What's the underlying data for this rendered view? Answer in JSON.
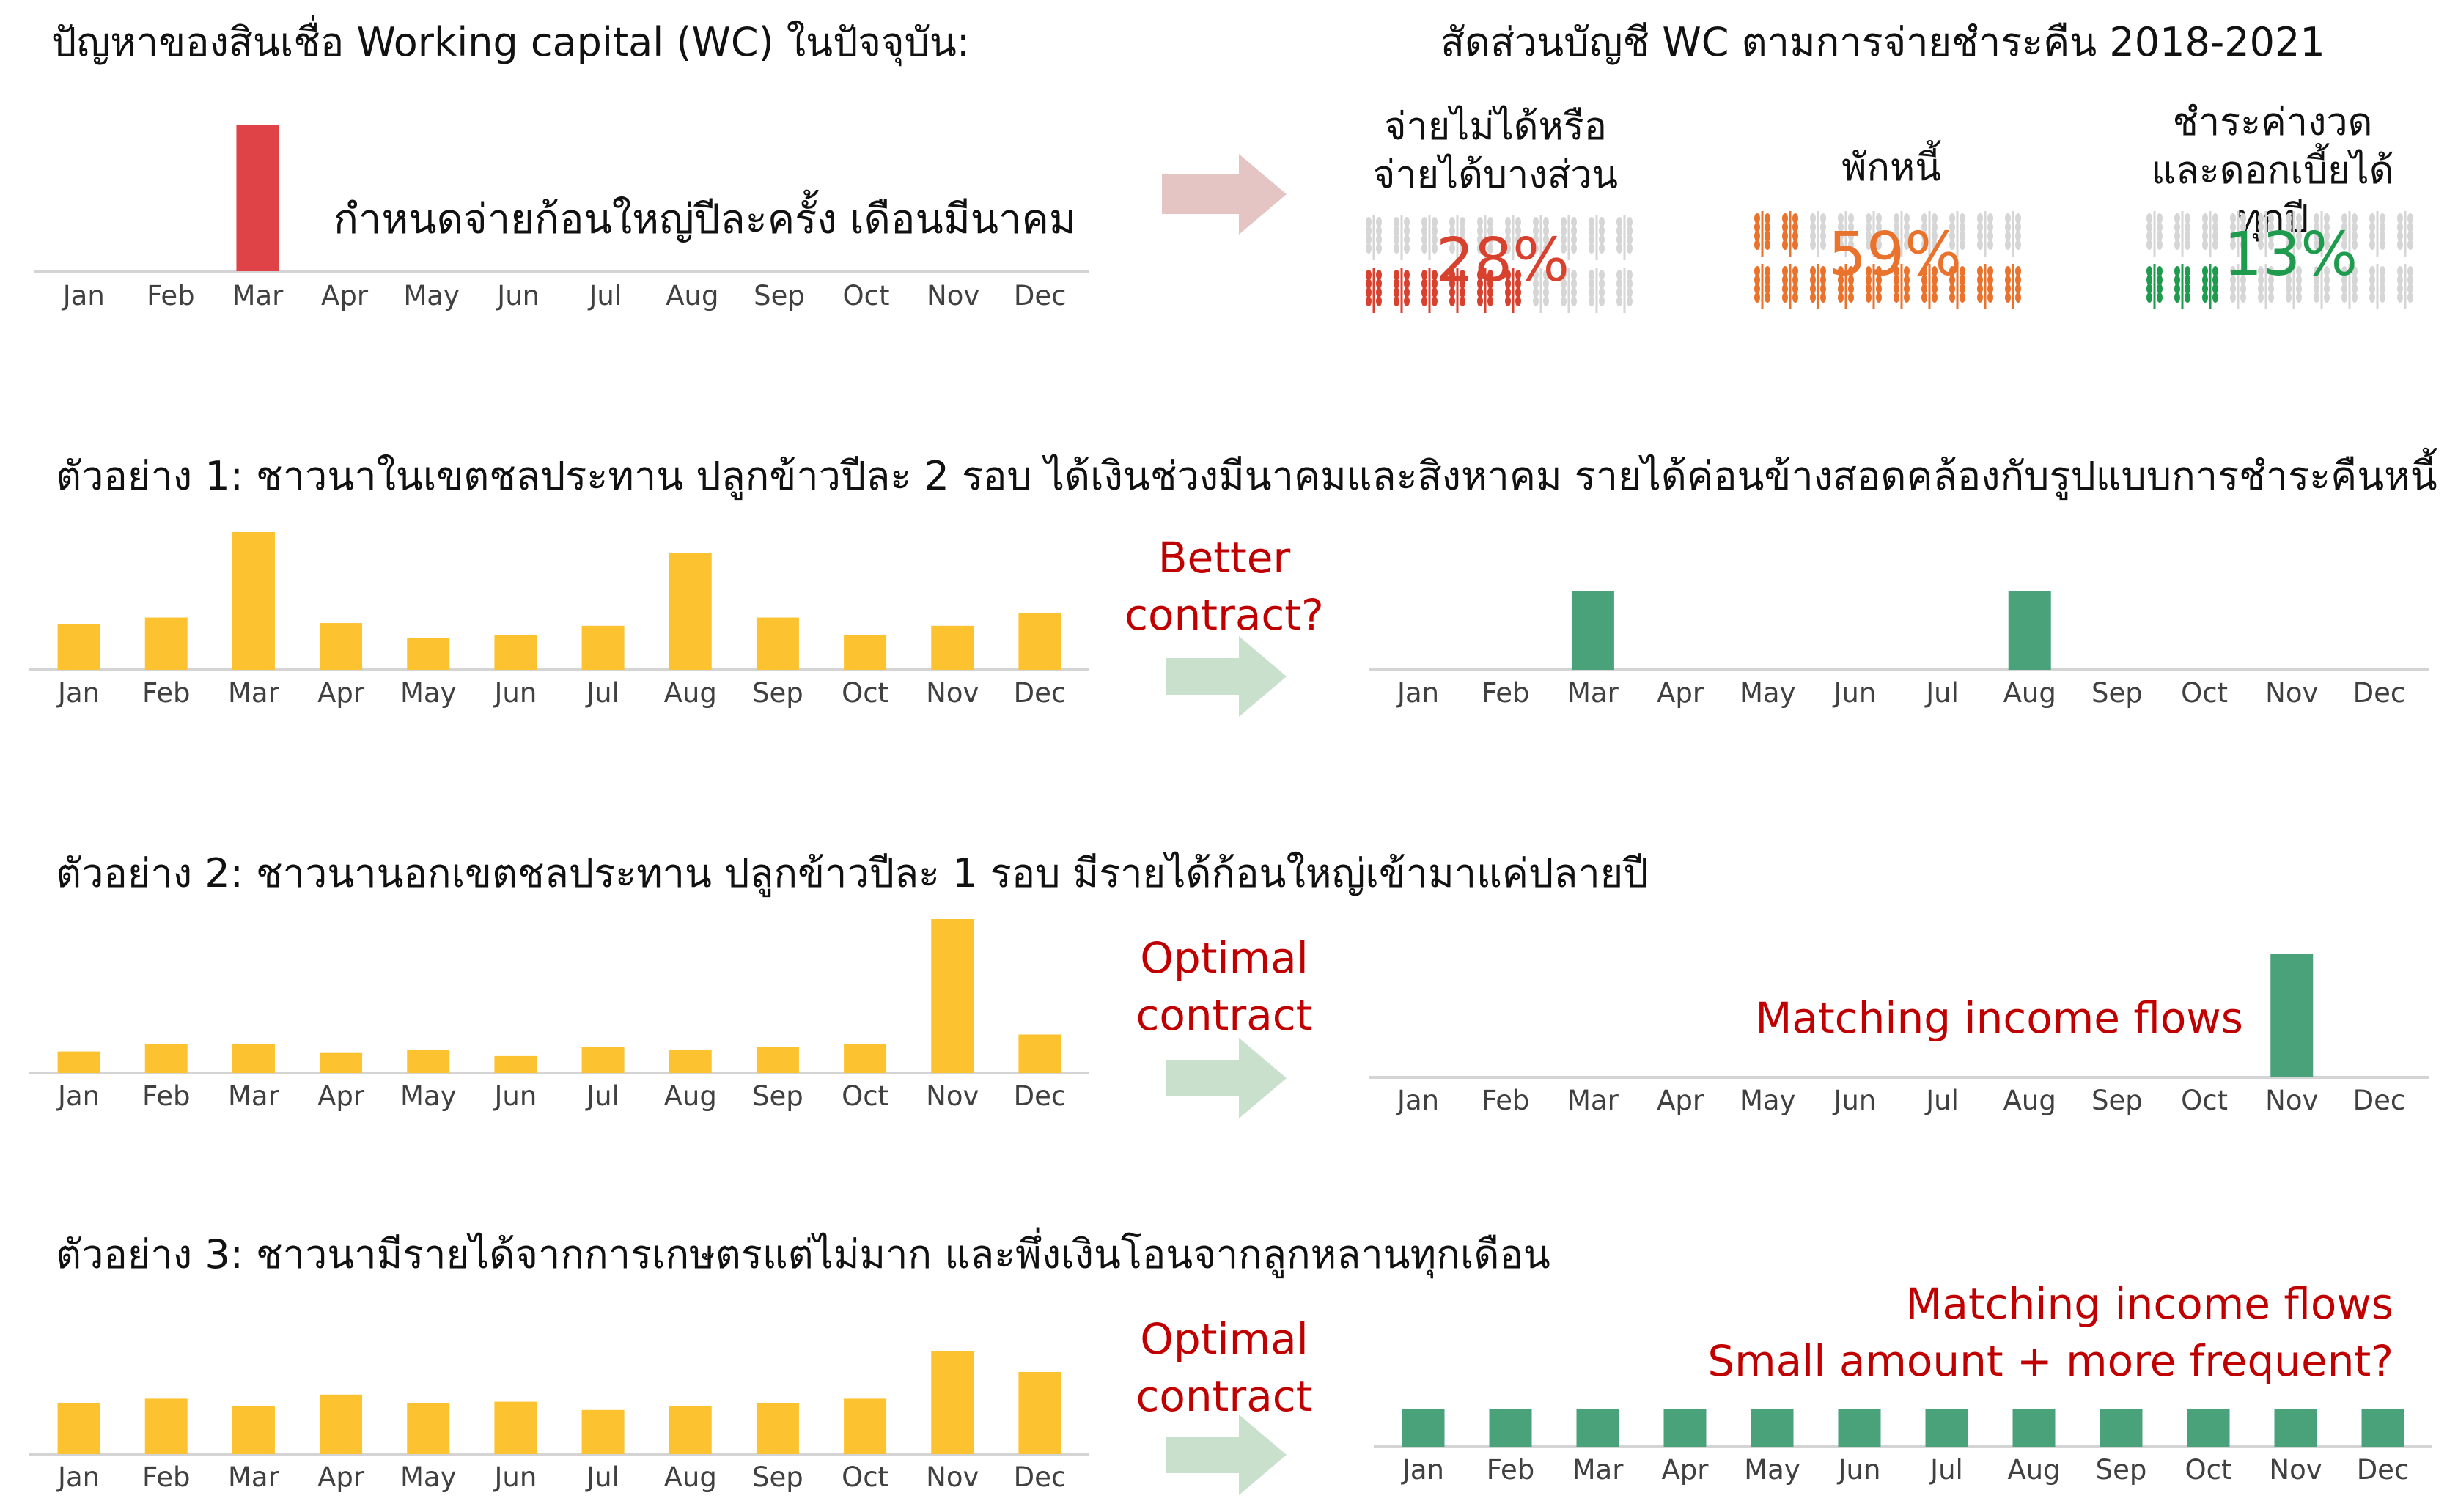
{
  "colors": {
    "red": "#e04347",
    "yellow": "#fdc22f",
    "green": "#4aa27b",
    "axis": "#d4d4d4",
    "tick_text": "#404040",
    "accent_text": "#c00000",
    "arrow_pink": "#e5c4c4",
    "arrow_green": "#c9e0cd",
    "wheat_gray": "#d6d6d6",
    "pct_red": "#d9412f",
    "pct_orange": "#e9732c",
    "pct_green": "#1f9b4e"
  },
  "problem": {
    "title": "ปัญหาของสินเชื่อ Working capital (WC) ในปัจจุบัน:",
    "annotation": "กำหนดจ่ายก้อนใหญ่ปีละครั้ง เดือนมีนาคม"
  },
  "share": {
    "title": "สัดส่วนบัญชี WC ตามการจ่ายชำระคืน 2018-2021",
    "items": [
      {
        "label": "จ่ายไม่ได้หรือจ่ายได้บางส่วน",
        "value": "28%",
        "color": "#d9412f",
        "fill": 0.28,
        "icon": "wheat-icon"
      },
      {
        "label": "พักหนี้",
        "value": "59%",
        "color": "#e9732c",
        "fill": 0.59,
        "icon": "wheat-icon"
      },
      {
        "label": "ชำระค่างวดและดอกเบี้ยได้ทุกปี",
        "value": "13%",
        "color": "#1f9b4e",
        "fill": 0.13,
        "icon": "wheat-icon"
      }
    ]
  },
  "examples": [
    {
      "title": "ตัวอย่าง 1: ชาวนาในเขตชลประทาน ปลูกข้าวปีละ 2 รอบ ได้เงินช่วงมีนาคมและสิงหาคม รายได้ค่อนข้างสอดคล้องกับรูปแบบการชำระคืนหนี้",
      "arrow_label": "Better contract?"
    },
    {
      "title": "ตัวอย่าง 2: ชาวนานอกเขตชลประทาน ปลูกข้าวปีละ 1 รอบ มีรายได้ก้อนใหญ่เข้ามาแค่ปลายปี",
      "arrow_label": "Optimal contract",
      "note": "Matching income flows"
    },
    {
      "title": "ตัวอย่าง 3: ชาวนามีรายได้จากการเกษตรแต่ไม่มาก และพึ่งเงินโอนจากลูกหลานทุกเดือน",
      "arrow_label": "Optimal contract",
      "note_lines": [
        "Matching income flows",
        "Small amount + more frequent?"
      ]
    }
  ],
  "chart_data": [
    {
      "type": "bar",
      "name": "current_wc_payment",
      "title": "",
      "categories": [
        "Jan",
        "Feb",
        "Mar",
        "Apr",
        "May",
        "Jun",
        "Jul",
        "Aug",
        "Sep",
        "Oct",
        "Nov",
        "Dec"
      ],
      "values": [
        0,
        0,
        1,
        0,
        0,
        0,
        0,
        0,
        0,
        0,
        0,
        0
      ],
      "ylim": [
        0,
        1
      ],
      "color": "#e04347",
      "grid": false
    },
    {
      "type": "bar",
      "name": "example1_income",
      "title": "",
      "categories": [
        "Jan",
        "Feb",
        "Mar",
        "Apr",
        "May",
        "Jun",
        "Jul",
        "Aug",
        "Sep",
        "Oct",
        "Nov",
        "Dec"
      ],
      "values": [
        0.33,
        0.38,
        1.0,
        0.34,
        0.23,
        0.25,
        0.32,
        0.85,
        0.38,
        0.25,
        0.32,
        0.41
      ],
      "ylim": [
        0,
        1
      ],
      "color": "#fdc22f",
      "grid": false
    },
    {
      "type": "bar",
      "name": "example1_payment",
      "title": "",
      "categories": [
        "Jan",
        "Feb",
        "Mar",
        "Apr",
        "May",
        "Jun",
        "Jul",
        "Aug",
        "Sep",
        "Oct",
        "Nov",
        "Dec"
      ],
      "values": [
        0,
        0,
        1,
        0,
        0,
        0,
        0,
        1,
        0,
        0,
        0,
        0
      ],
      "ylim": [
        0,
        1
      ],
      "color": "#4aa27b",
      "grid": false
    },
    {
      "type": "bar",
      "name": "example2_income",
      "title": "",
      "categories": [
        "Jan",
        "Feb",
        "Mar",
        "Apr",
        "May",
        "Jun",
        "Jul",
        "Aug",
        "Sep",
        "Oct",
        "Nov",
        "Dec"
      ],
      "values": [
        0.14,
        0.19,
        0.19,
        0.13,
        0.15,
        0.11,
        0.17,
        0.15,
        0.17,
        0.19,
        1.0,
        0.25
      ],
      "ylim": [
        0,
        1
      ],
      "color": "#fdc22f",
      "grid": false
    },
    {
      "type": "bar",
      "name": "example2_payment",
      "title": "",
      "categories": [
        "Jan",
        "Feb",
        "Mar",
        "Apr",
        "May",
        "Jun",
        "Jul",
        "Aug",
        "Sep",
        "Oct",
        "Nov",
        "Dec"
      ],
      "values": [
        0,
        0,
        0,
        0,
        0,
        0,
        0,
        0,
        0,
        0,
        1,
        0
      ],
      "ylim": [
        0,
        1
      ],
      "color": "#4aa27b",
      "grid": false
    },
    {
      "type": "bar",
      "name": "example3_income",
      "title": "",
      "categories": [
        "Jan",
        "Feb",
        "Mar",
        "Apr",
        "May",
        "Jun",
        "Jul",
        "Aug",
        "Sep",
        "Oct",
        "Nov",
        "Dec"
      ],
      "values": [
        0.5,
        0.54,
        0.47,
        0.58,
        0.5,
        0.51,
        0.43,
        0.47,
        0.5,
        0.54,
        1.0,
        0.8
      ],
      "ylim": [
        0,
        1
      ],
      "color": "#fdc22f",
      "grid": false
    },
    {
      "type": "bar",
      "name": "example3_payment",
      "title": "",
      "categories": [
        "Jan",
        "Feb",
        "Mar",
        "Apr",
        "May",
        "Jun",
        "Jul",
        "Aug",
        "Sep",
        "Oct",
        "Nov",
        "Dec"
      ],
      "values": [
        1,
        1,
        1,
        1,
        1,
        1,
        1,
        1,
        1,
        1,
        1,
        1
      ],
      "ylim": [
        0,
        1
      ],
      "color": "#4aa27b",
      "grid": false
    }
  ]
}
